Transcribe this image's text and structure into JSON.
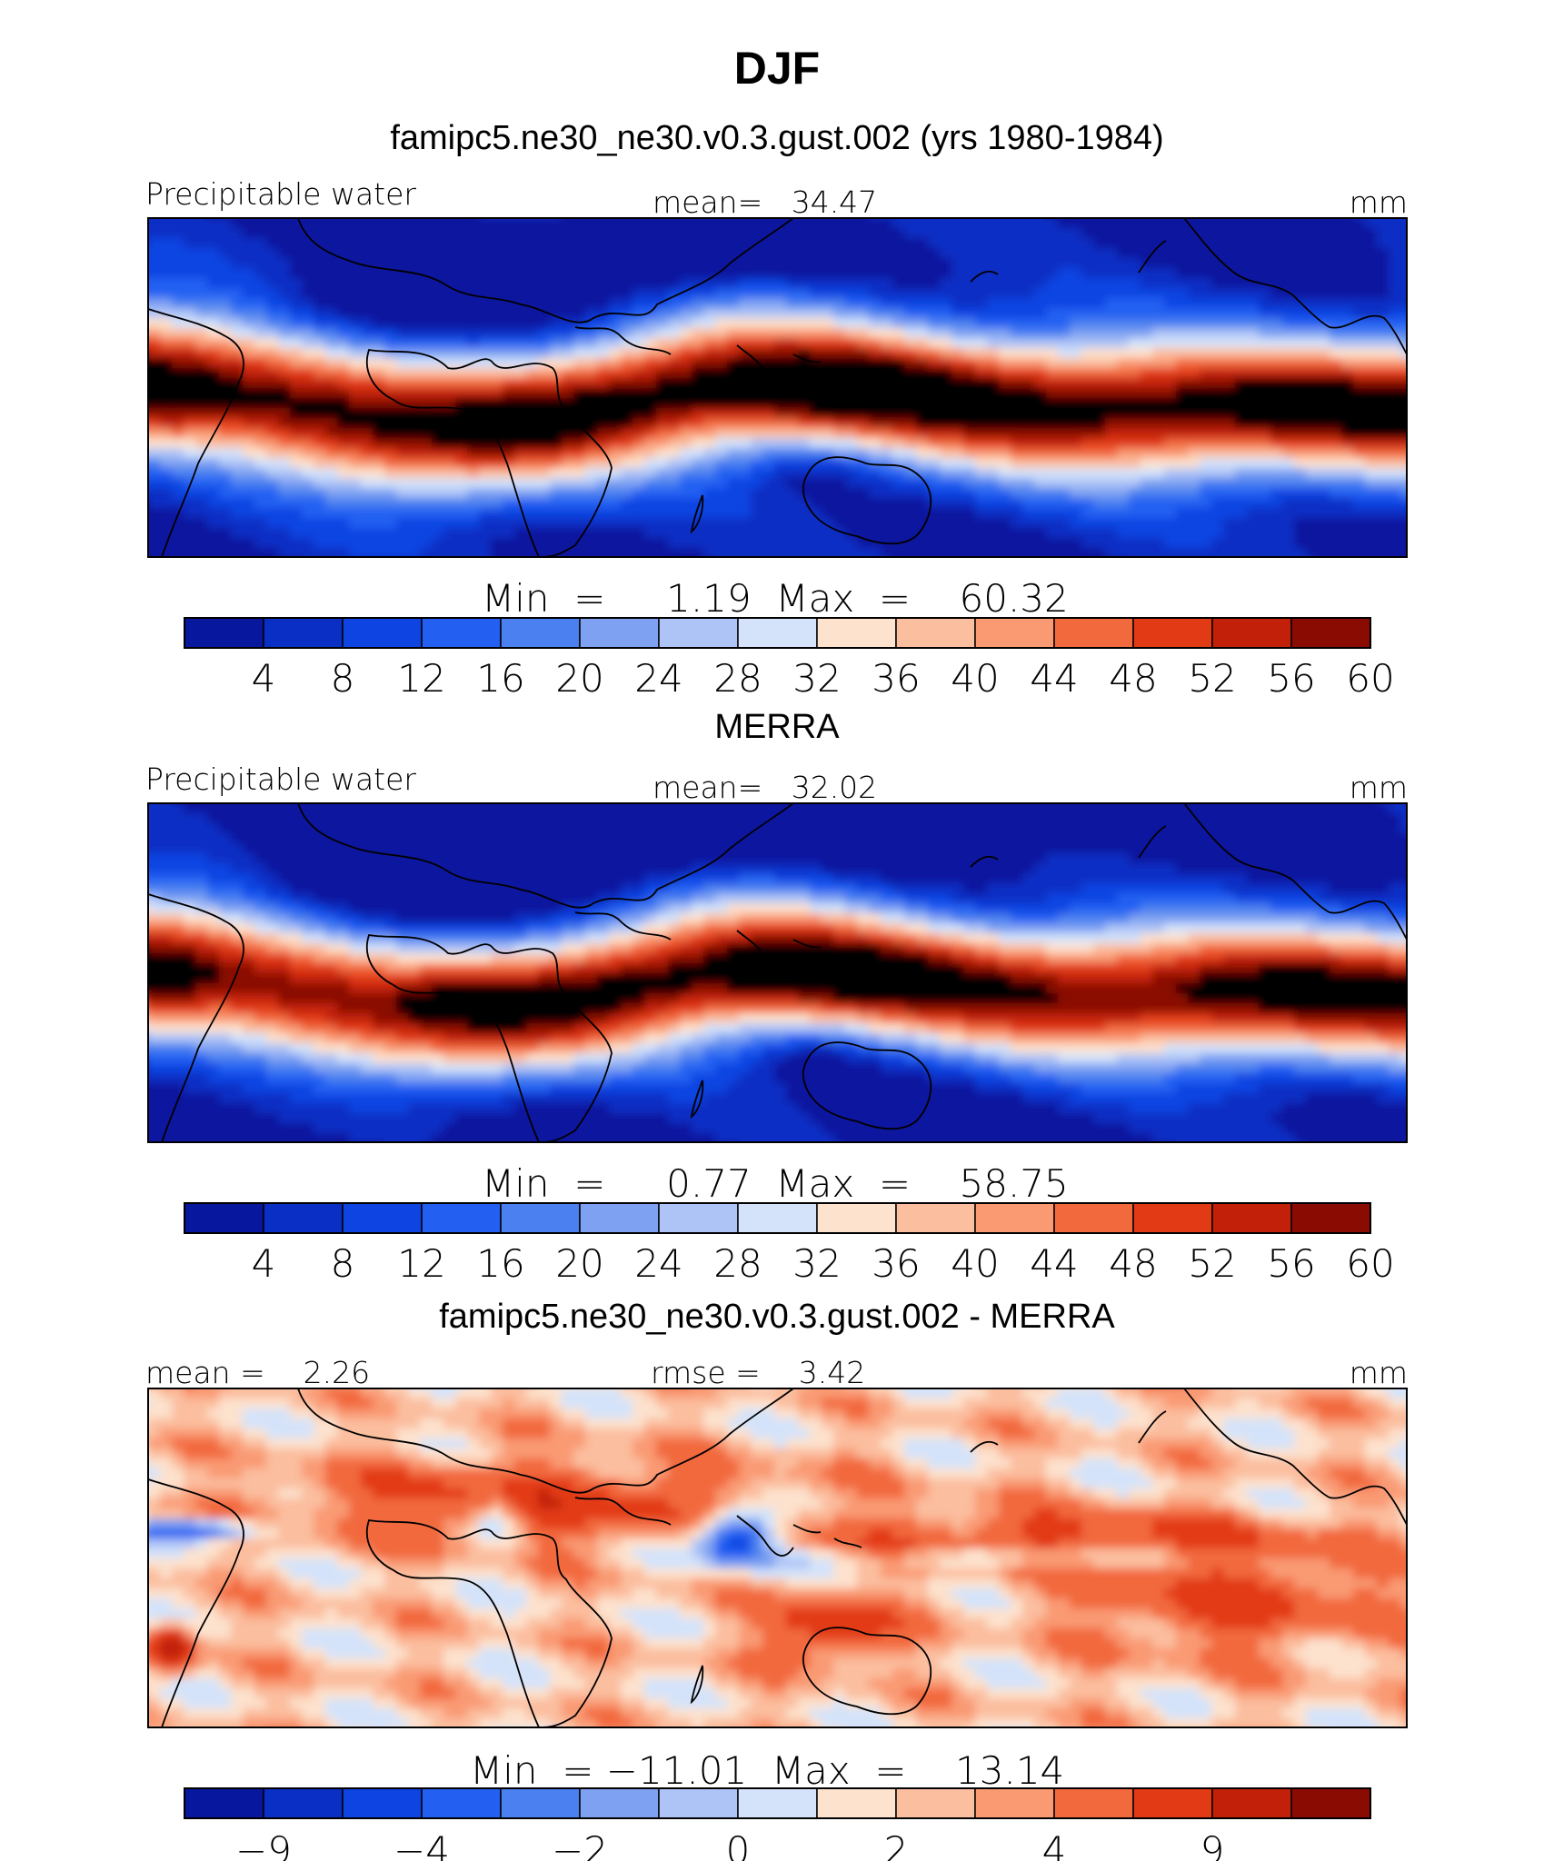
{
  "chart_data": {
    "type": "heatmap",
    "title": "DJF",
    "panels": [
      {
        "id": "model",
        "title": "famipc5.ne30_ne30.v0.3.gust.002 (yrs 1980-1984)",
        "left_label": "Precipitable water",
        "center_label": "mean=   34.47",
        "units": "mm",
        "stats": {
          "mean": 34.47,
          "min": 1.19,
          "max": 60.32
        },
        "minmax_text": "Min  =     1.19  Max  =    60.32",
        "colorbar": {
          "levels": [
            4,
            8,
            12,
            16,
            20,
            24,
            28,
            32,
            36,
            40,
            44,
            48,
            52,
            56,
            60
          ],
          "tick_labels": [
            "4",
            "8",
            "12",
            "16",
            "20",
            "24",
            "28",
            "32",
            "36",
            "40",
            "44",
            "48",
            "52",
            "56",
            "60"
          ]
        }
      },
      {
        "id": "obs",
        "title": "MERRA",
        "left_label": "Precipitable water",
        "center_label": "mean=   32.02",
        "units": "mm",
        "stats": {
          "mean": 32.02,
          "min": 0.77,
          "max": 58.75
        },
        "minmax_text": "Min  =     0.77  Max  =    58.75",
        "colorbar": {
          "levels": [
            4,
            8,
            12,
            16,
            20,
            24,
            28,
            32,
            36,
            40,
            44,
            48,
            52,
            56,
            60
          ],
          "tick_labels": [
            "4",
            "8",
            "12",
            "16",
            "20",
            "24",
            "28",
            "32",
            "36",
            "40",
            "44",
            "48",
            "52",
            "56",
            "60"
          ]
        }
      },
      {
        "id": "diff",
        "title": "famipc5.ne30_ne30.v0.3.gust.002 - MERRA",
        "left_label": "mean =    2.26",
        "center_label": "rmse =    3.42",
        "units": "mm",
        "stats": {
          "mean": 2.26,
          "rmse": 3.42,
          "min": -11.01,
          "max": 13.14
        },
        "minmax_text": "Min  = −11.01  Max  =    13.14",
        "colorbar": {
          "levels": [
            -9,
            -6,
            -4,
            -3,
            -2,
            -1,
            0,
            1,
            2,
            3,
            4,
            6,
            9,
            12
          ],
          "tick_labels": [
            "−9",
            "−4",
            "−2",
            "0",
            "2",
            "4",
            "9"
          ]
        }
      }
    ],
    "colors": [
      "#08189e",
      "#0a2fc4",
      "#0e45e2",
      "#2360f2",
      "#4a80f0",
      "#7ea1f2",
      "#aec4f6",
      "#d4e3fa",
      "#fde2ce",
      "#fbbe9f",
      "#f99a73",
      "#f2693e",
      "#e23a14",
      "#c22008",
      "#8a0b02"
    ]
  }
}
